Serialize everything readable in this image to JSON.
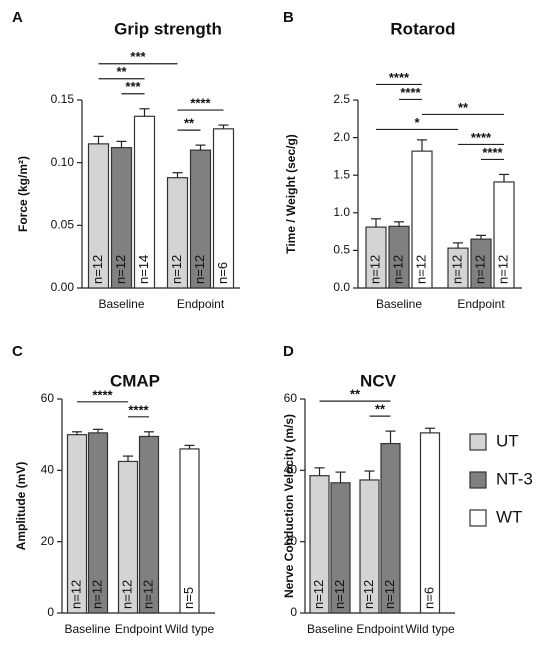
{
  "figure": {
    "legend": [
      {
        "name": "UT",
        "color": "#d4d4d4"
      },
      {
        "name": "NT-3",
        "color": "#808080"
      },
      {
        "name": "WT",
        "color": "#ffffff"
      }
    ]
  },
  "chart_data": [
    {
      "type": "bar",
      "panel": "A",
      "title": "Grip strength",
      "y_label": "Force (kg/m²)",
      "categories": [
        "Baseline",
        "Endpoint"
      ],
      "ylim": [
        0,
        0.15
      ],
      "yticks": [
        {
          "value": 0,
          "label": "0.00"
        },
        0.05,
        {
          "value": 0.1,
          "label": "0.10"
        },
        0.15
      ],
      "series": [
        {
          "values": [
            0.115,
            0.088
          ],
          "errors": [
            0.006,
            0.004
          ],
          "n_labels": [
            "n=12",
            "n=12"
          ]
        },
        {
          "values": [
            0.112,
            0.11
          ],
          "errors": [
            0.005,
            0.004
          ],
          "n_labels": [
            "n=12",
            "n=12"
          ]
        },
        {
          "values": [
            0.137,
            0.127
          ],
          "errors": [
            0.006,
            0.003
          ],
          "n_labels": [
            "n=14",
            "n=6"
          ]
        }
      ],
      "brackets": [
        {
          "label": "**",
          "from": [
            1,
            0
          ],
          "to": [
            1,
            1
          ]
        },
        {
          "label": "***",
          "from": [
            0,
            1
          ],
          "to": [
            0,
            2
          ]
        },
        {
          "label": "**",
          "from": [
            0,
            0
          ],
          "to": [
            0,
            2
          ]
        },
        {
          "label": "****",
          "from": [
            1,
            0
          ],
          "to": [
            1,
            2
          ]
        },
        {
          "label": "***",
          "from": [
            0,
            0
          ],
          "to": [
            1,
            0
          ]
        }
      ]
    },
    {
      "type": "bar",
      "panel": "B",
      "title": "Rotarod",
      "y_label": "Time / Weight (sec/g)",
      "categories": [
        "Baseline",
        "Endpoint"
      ],
      "ylim": [
        0,
        2.5
      ],
      "yticks": [
        {
          "value": 0,
          "label": "0.0"
        },
        0.5,
        {
          "value": 1,
          "label": "1.0"
        },
        1.5,
        {
          "value": 2,
          "label": "2.0"
        },
        2.5
      ],
      "series": [
        {
          "values": [
            0.81,
            0.53
          ],
          "errors": [
            0.11,
            0.07
          ],
          "n_labels": [
            "n=12",
            "n=12"
          ]
        },
        {
          "values": [
            0.82,
            0.65
          ],
          "errors": [
            0.06,
            0.05
          ],
          "n_labels": [
            "n=12",
            "n=12"
          ]
        },
        {
          "values": [
            1.82,
            1.41
          ],
          "errors": [
            0.15,
            0.1
          ],
          "n_labels": [
            "n=12",
            "n=12"
          ]
        }
      ],
      "brackets": [
        {
          "label": "****",
          "from": [
            1,
            1
          ],
          "to": [
            1,
            2
          ]
        },
        {
          "label": "****",
          "from": [
            1,
            0
          ],
          "to": [
            1,
            2
          ]
        },
        {
          "label": "*",
          "from": [
            0,
            0
          ],
          "to": [
            1,
            0
          ]
        },
        {
          "label": "**",
          "from": [
            0,
            2
          ],
          "to": [
            1,
            2
          ]
        },
        {
          "label": "****",
          "from": [
            0,
            1
          ],
          "to": [
            0,
            2
          ]
        },
        {
          "label": "****",
          "from": [
            0,
            0
          ],
          "to": [
            0,
            2
          ]
        }
      ]
    },
    {
      "type": "bar",
      "panel": "C",
      "title": "CMAP",
      "y_label": "Amplitude (mV)",
      "categories": [
        "Baseline",
        "Endpoint",
        "Wild type"
      ],
      "ylim": [
        0,
        60
      ],
      "yticks": [
        0,
        20,
        40,
        60
      ],
      "series": [
        {
          "values": [
            50,
            42.5,
            null
          ],
          "errors": [
            0.8,
            1.5,
            null
          ],
          "n_labels": [
            "n=12",
            "n=12",
            null
          ]
        },
        {
          "values": [
            50.5,
            49.5,
            null
          ],
          "errors": [
            1.0,
            1.3,
            null
          ],
          "n_labels": [
            "n=12",
            "n=12",
            null
          ]
        },
        {
          "values": [
            null,
            null,
            46
          ],
          "errors": [
            null,
            null,
            1.0
          ],
          "n_labels": [
            null,
            null,
            "n=5"
          ]
        }
      ],
      "brackets": [
        {
          "label": "****",
          "from": [
            1,
            0
          ],
          "to": [
            1,
            1
          ]
        },
        {
          "label": "****",
          "from": [
            0,
            0
          ],
          "to": [
            1,
            0
          ]
        }
      ]
    },
    {
      "type": "bar",
      "panel": "D",
      "title": "NCV",
      "y_label": "Nerve Conduction Velocity (m/s)",
      "categories": [
        "Baseline",
        "Endpoint",
        "Wild type"
      ],
      "ylim": [
        0,
        60
      ],
      "yticks": [
        0,
        20,
        40,
        60
      ],
      "series": [
        {
          "values": [
            38.5,
            37.3,
            null
          ],
          "errors": [
            2.2,
            2.5,
            null
          ],
          "n_labels": [
            "n=12",
            "n=12",
            null
          ]
        },
        {
          "values": [
            36.5,
            47.5,
            null
          ],
          "errors": [
            3.0,
            3.5,
            null
          ],
          "n_labels": [
            "n=12",
            "n=12",
            null
          ]
        },
        {
          "values": [
            null,
            null,
            50.5
          ],
          "errors": [
            null,
            null,
            1.3
          ],
          "n_labels": [
            null,
            null,
            "n=6"
          ]
        }
      ],
      "brackets": [
        {
          "label": "**",
          "from": [
            1,
            0
          ],
          "to": [
            1,
            1
          ]
        },
        {
          "label": "**",
          "from": [
            0,
            0
          ],
          "to": [
            1,
            1
          ]
        }
      ]
    }
  ]
}
